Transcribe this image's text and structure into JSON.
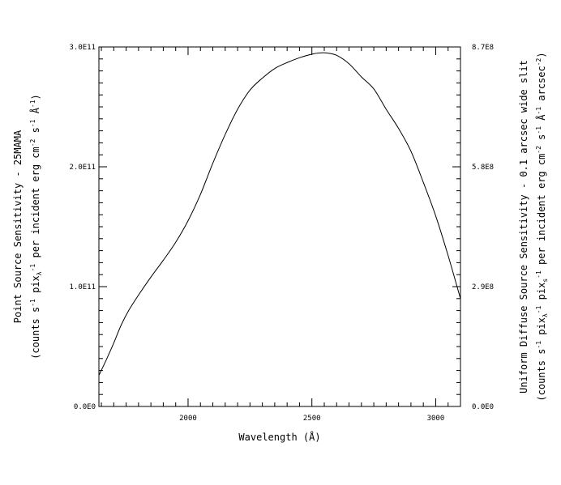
{
  "chart_data": {
    "type": "line",
    "title": "",
    "xlabel": "Wavelength (Å)",
    "ylabel_left": "Point Source Sensitivity - 25MAMA",
    "ylabel_left_units": {
      "a": "(counts s",
      "a_sup": "-1",
      "b": " pix",
      "b_sub": "λ",
      "b_sup": "-1",
      "c": " per incident erg cm",
      "c_sup": "-2",
      "d": " s",
      "d_sup": "-1",
      "e": " Å",
      "e_sup": "-1",
      "f": ")"
    },
    "ylabel_right": "Uniform Diffuse Source Sensitivity - 0.1 arcsec wide slit",
    "ylabel_right_units": {
      "a": "(counts s",
      "a_sup": "-1",
      "b": " pix",
      "b_sub": "λ",
      "b_sup": "-1",
      "c": " pix",
      "c_sub": "s",
      "c_sup": "-1",
      "d": " per incident erg cm",
      "d_sup": "-2",
      "e": " s",
      "e_sup": "-1",
      "f": " Å",
      "f_sup": "-1",
      "g": " arcsec",
      "g_sup": "-2",
      "h": ")"
    },
    "xlim": [
      1640,
      3100
    ],
    "ylim_left": [
      0,
      300000000000.0
    ],
    "ylim_right": [
      0,
      870000000.0
    ],
    "x_ticks": [
      {
        "value": 2000,
        "label": "2000"
      },
      {
        "value": 2500,
        "label": "2500"
      },
      {
        "value": 3000,
        "label": "3000"
      }
    ],
    "y_ticks_left": [
      {
        "value": 0,
        "label": "0.0E0"
      },
      {
        "value": 100000000000.0,
        "label": "1.0E11"
      },
      {
        "value": 200000000000.0,
        "label": "2.0E11"
      },
      {
        "value": 300000000000.0,
        "label": "3.0E11"
      }
    ],
    "y_ticks_right": [
      {
        "value": 0,
        "label": "0.0E0"
      },
      {
        "value": 290000000.0,
        "label": "2.9E8"
      },
      {
        "value": 580000000.0,
        "label": "5.8E8"
      },
      {
        "value": 870000000.0,
        "label": "8.7E8"
      }
    ],
    "grid": false,
    "series": [
      {
        "x": [
          1640,
          1670,
          1700,
          1730,
          1760,
          1800,
          1850,
          1900,
          1950,
          2000,
          2050,
          2100,
          2150,
          2200,
          2250,
          2300,
          2350,
          2400,
          2450,
          2500,
          2530,
          2560,
          2600,
          2650,
          2700,
          2750,
          2800,
          2850,
          2900,
          2950,
          3000,
          3050,
          3100
        ],
        "y": [
          26000000000.0,
          39000000000.0,
          53000000000.0,
          68000000000.0,
          80000000000.0,
          93000000000.0,
          108000000000.0,
          122000000000.0,
          137000000000.0,
          155000000000.0,
          177000000000.0,
          203000000000.0,
          227000000000.0,
          248000000000.0,
          264000000000.0,
          274000000000.0,
          282000000000.0,
          287000000000.0,
          291000000000.0,
          294000000000.0,
          295000000000.0,
          295000000000.0,
          293000000000.0,
          286000000000.0,
          275000000000.0,
          265000000000.0,
          248000000000.0,
          232000000000.0,
          213000000000.0,
          187000000000.0,
          159000000000.0,
          126000000000.0,
          90000000000.0
        ]
      }
    ]
  }
}
